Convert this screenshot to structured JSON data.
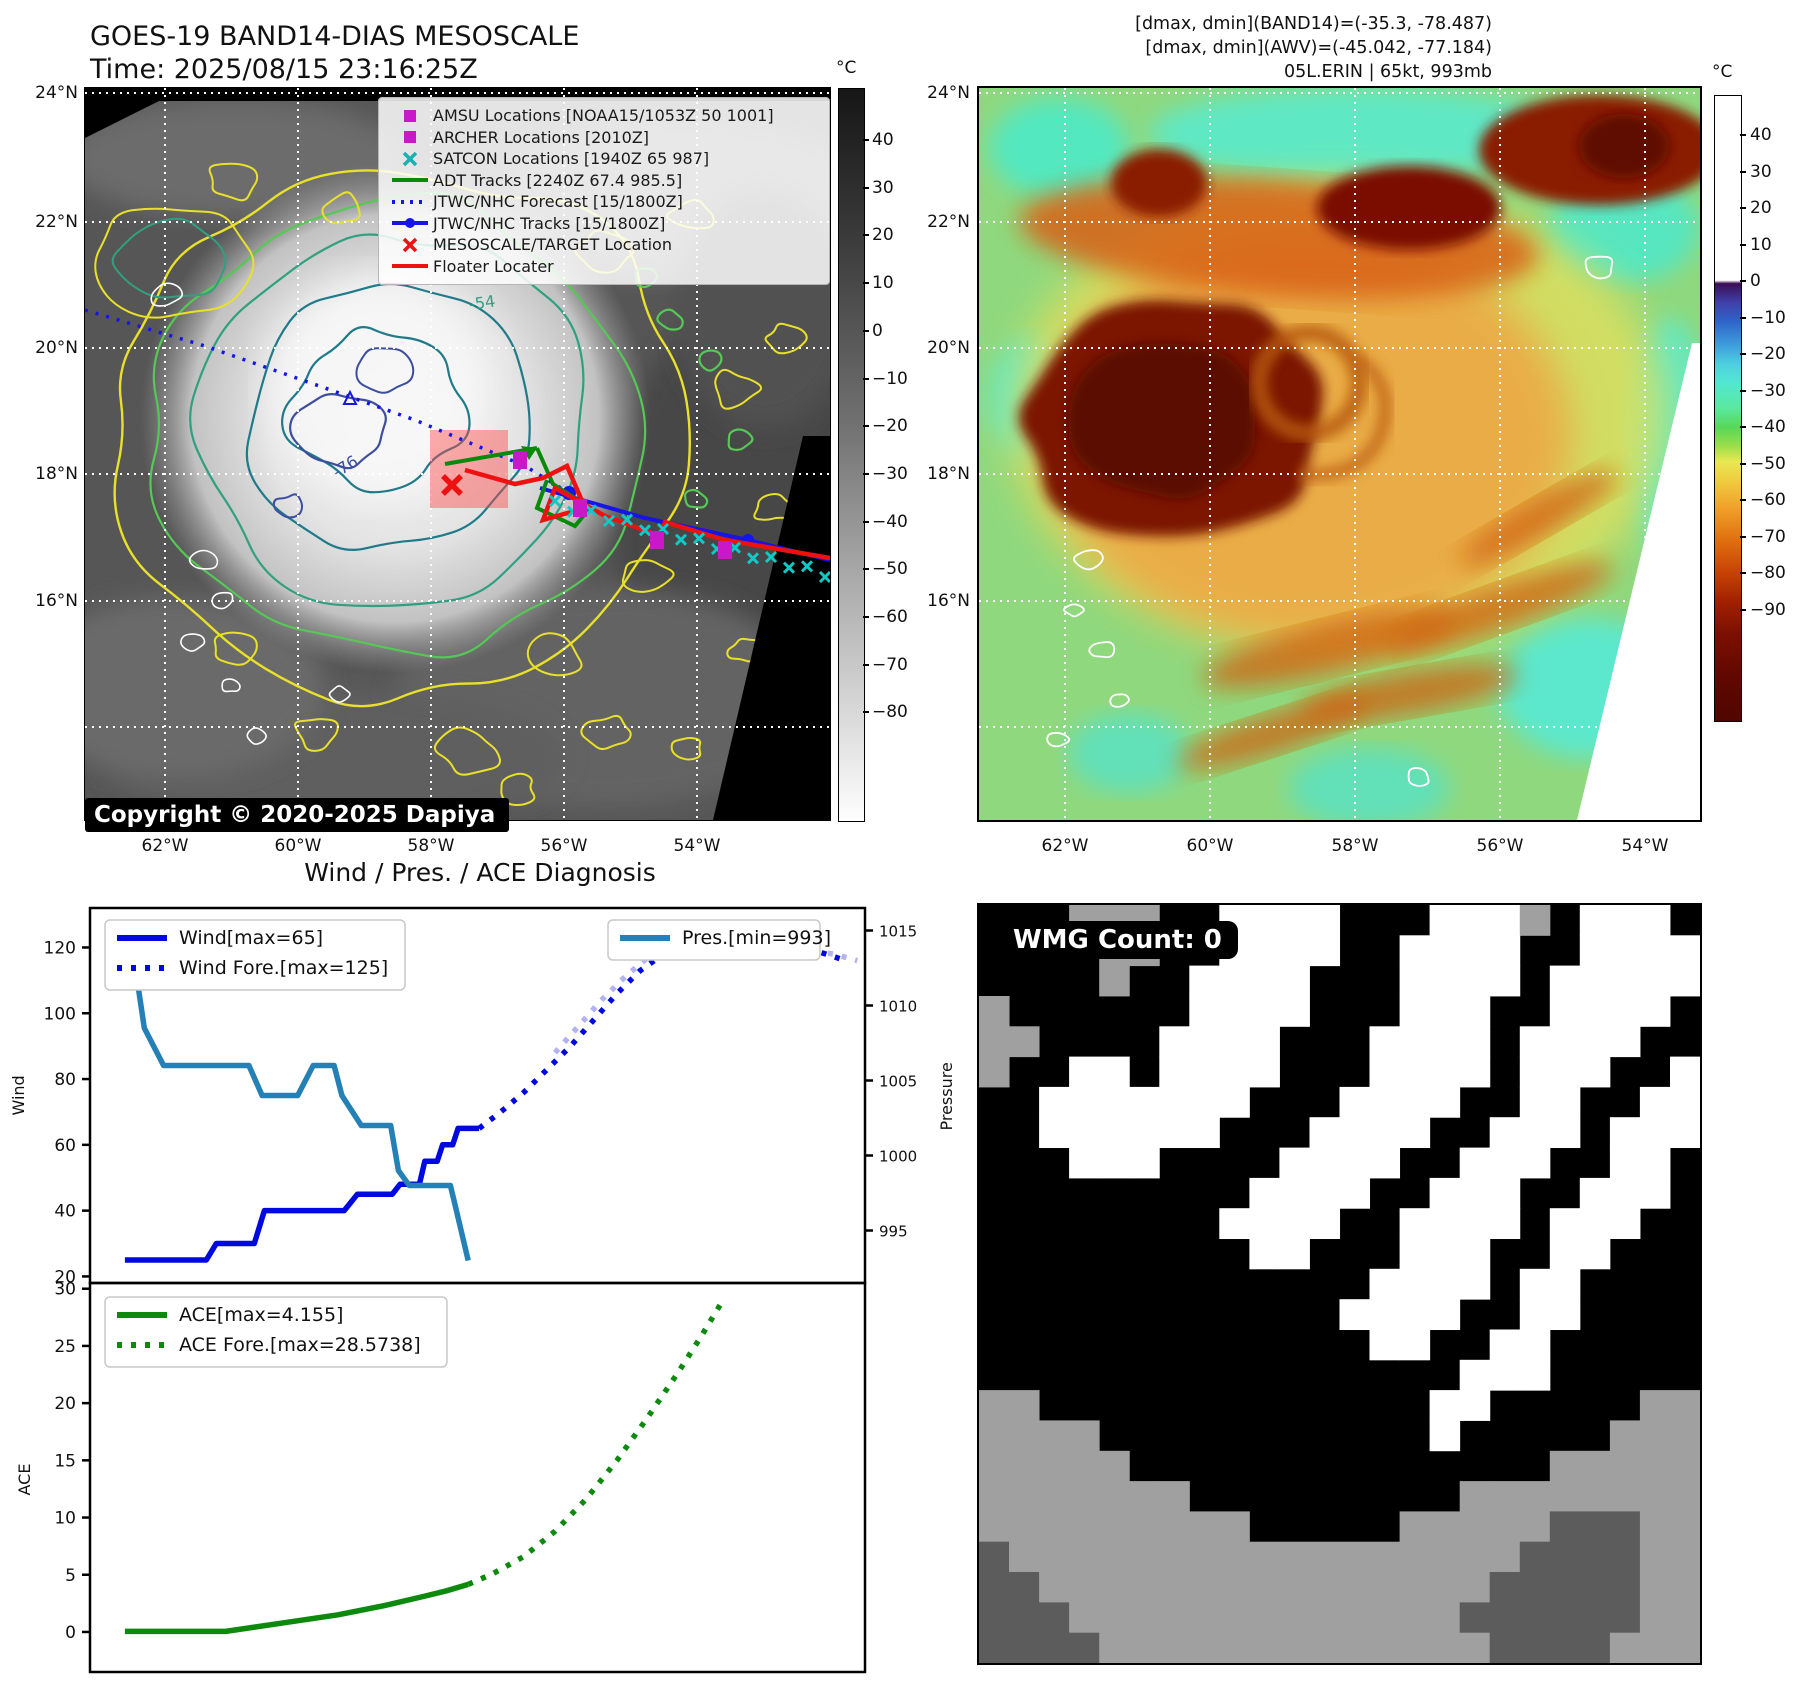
{
  "header": {
    "title1": "GOES-19 BAND14-DIAS MESOSCALE",
    "title2": "Time: 2025/08/15 23:16:25Z",
    "info1": "[dmax, dmin](BAND14)=(-35.3, -78.487)",
    "info2": "[dmax, dmin](AWV)=(-45.042, -77.184)",
    "info3": "05L.ERIN | 65kt, 993mb"
  },
  "sat_left": {
    "y_ticks": [
      "24°N",
      "22°N",
      "20°N",
      "18°N",
      "16°N"
    ],
    "x_ticks": [
      "62°W",
      "60°W",
      "58°W",
      "56°W",
      "54°W"
    ],
    "copyright": "Copyright © 2020-2025 Dapiya",
    "contour_labels": {
      "inner": "-76",
      "outer": "-54"
    },
    "legend": [
      {
        "marker": "square",
        "color": "#c818c8",
        "label": "AMSU Locations [NOAA15/1053Z 50 1001]"
      },
      {
        "marker": "square",
        "color": "#c818c8",
        "label": "ARCHER Locations [2010Z]"
      },
      {
        "marker": "x",
        "color": "#18b0b0",
        "label": "SATCON Locations [1940Z 65 987]"
      },
      {
        "marker": "line",
        "color": "#0a8a0a",
        "label": "ADT Tracks [2240Z 67.4 985.5]"
      },
      {
        "marker": "dotted",
        "color": "#1515e8",
        "label": "JTWC/NHC Forecast [15/1800Z]"
      },
      {
        "marker": "linedot",
        "color": "#1515e8",
        "label": "JTWC/NHC Tracks [15/1800Z]"
      },
      {
        "marker": "x",
        "color": "#ee1111",
        "label": "MESOSCALE/TARGET Location"
      },
      {
        "marker": "line",
        "color": "#ee1111",
        "label": "Floater Locater"
      }
    ],
    "colorbar": {
      "unit": "°C",
      "ticks": [
        "40",
        "30",
        "20",
        "10",
        "0",
        "−10",
        "−20",
        "−30",
        "−40",
        "−50",
        "−60",
        "−70",
        "−80"
      ]
    }
  },
  "sat_right": {
    "y_ticks": [
      "24°N",
      "22°N",
      "20°N",
      "18°N",
      "16°N"
    ],
    "x_ticks": [
      "62°W",
      "60°W",
      "58°W",
      "56°W",
      "54°W"
    ],
    "colorbar": {
      "unit": "°C",
      "ticks": [
        "40",
        "30",
        "20",
        "10",
        "0",
        "−10",
        "−20",
        "−30",
        "−40",
        "−50",
        "−60",
        "−70",
        "−80",
        "−90"
      ]
    }
  },
  "wmg": {
    "label": "WMG Count: 0",
    "palette": {
      "B": "#000000",
      "W": "#ffffff",
      "G": "#a0a0a0",
      "D": "#5c5c5c"
    },
    "grid": [
      "BBBGGGBBWWWWBBBWWWGBWWWB",
      "BBBBGGBBWWWWBBWWWWBBWWWW",
      "BBBBGBBWWWWBBBWWWWBWWWWW",
      "GBBBBBBWWWWBBBWWWBBWWWWB",
      "GGBBBBWWWWBBBWWWWBWWWWBB",
      "GBBWWBWWWWBBBWWWWBWWWBBW",
      "BBWWWWWWWBBBWWWWBBWWBBWW",
      "BBWWWWWWBBBWWWWBBWWWBWWW",
      "BBBWWWBBBBWWWWBBWWWBBWWB",
      "BBBBBBBBBWWWWBBWWWBBWWWB",
      "BBBBBBBBWWWWBBWWWWBWWWBB",
      "BBBBBBBBBWWBBBWWWBBWWBBB",
      "BBBBBBBBBBBBBWWWWBWWBBBB",
      "BBBBBBBBBBBBWWWWBBWWBBBB",
      "BBBBBBBBBBBBBWWBBWWBBBBB",
      "BBBBBBBBBBBBBBBBWWWBBBBB",
      "GGBBBBBBBBBBBBBWWBBBBBGG",
      "GGGGBBBBBBBBBBBWBBBBBGGG",
      "GGGGGBBBBBBBBBBBBBBGGGGG",
      "GGGGGGGBBBBBBBBBGGGGGGGG",
      "GGGGGGGGGBBBBBGGGGGDDDGG",
      "DGGGGGGGGGGGGGGGGGDDDDGG",
      "DDGGGGGGGGGGGGGGGDDDDDGG",
      "DDDGGGGGGGGGGGGGDDDDDDGG",
      "DDDDGGGGGGGGGGGGGDDDDGGG"
    ]
  },
  "chart_data": {
    "type": "line",
    "title": "Wind / Pres. / ACE Diagnosis",
    "panels": [
      {
        "name": "wind_pres",
        "ylabel_left": "Wind",
        "ylabel_right": "Pressure",
        "ylim_left": [
          18,
          132
        ],
        "yticks_left": [
          20,
          40,
          60,
          80,
          100,
          120
        ],
        "ylim_right": [
          991.5,
          1016.5
        ],
        "yticks_right": [
          995,
          1000,
          1005,
          1010,
          1015
        ],
        "series": [
          {
            "name": "Wind ext. forecast",
            "style": "dotted",
            "color": "#b3b3ef",
            "axis": "left",
            "points": [
              [
                0.6,
                88
              ],
              [
                0.63,
                96
              ],
              [
                0.66,
                104
              ],
              [
                0.69,
                111
              ],
              [
                0.72,
                117
              ],
              [
                0.75,
                121
              ],
              [
                0.78,
                124
              ],
              [
                0.81,
                125
              ],
              [
                0.84,
                125
              ],
              [
                0.87,
                123
              ],
              [
                0.9,
                121
              ],
              [
                0.93,
                119
              ],
              [
                0.96,
                118
              ],
              [
                0.99,
                116
              ]
            ]
          },
          {
            "name": "Wind[max=65]",
            "style": "solid",
            "color": "#0008e0",
            "axis": "left",
            "points": [
              [
                0.045,
                25
              ],
              [
                0.15,
                25
              ],
              [
                0.163,
                30
              ],
              [
                0.212,
                30
              ],
              [
                0.225,
                40
              ],
              [
                0.328,
                40
              ],
              [
                0.345,
                45
              ],
              [
                0.39,
                45
              ],
              [
                0.4,
                48
              ],
              [
                0.425,
                48
              ],
              [
                0.432,
                55
              ],
              [
                0.448,
                55
              ],
              [
                0.455,
                60
              ],
              [
                0.468,
                60
              ],
              [
                0.475,
                65
              ],
              [
                0.502,
                65
              ]
            ]
          },
          {
            "name": "Wind Fore.[max=125]",
            "style": "dotted",
            "color": "#0008e0",
            "axis": "left",
            "points": [
              [
                0.502,
                65
              ],
              [
                0.53,
                70
              ],
              [
                0.56,
                76
              ],
              [
                0.59,
                83
              ],
              [
                0.62,
                90
              ],
              [
                0.65,
                98
              ],
              [
                0.68,
                106
              ],
              [
                0.71,
                113
              ],
              [
                0.74,
                118
              ],
              [
                0.77,
                122
              ],
              [
                0.8,
                124
              ],
              [
                0.83,
                125
              ],
              [
                0.86,
                124
              ],
              [
                0.89,
                122
              ],
              [
                0.92,
                120
              ],
              [
                0.95,
                118
              ],
              [
                0.975,
                116
              ]
            ]
          },
          {
            "name": "Pres.[min=993]",
            "style": "solid",
            "color": "#2581b5",
            "axis": "right",
            "points": [
              [
                0.052,
                1015
              ],
              [
                0.06,
                1012
              ],
              [
                0.07,
                1008.5
              ],
              [
                0.095,
                1006
              ],
              [
                0.205,
                1006
              ],
              [
                0.222,
                1004
              ],
              [
                0.268,
                1004
              ],
              [
                0.288,
                1006
              ],
              [
                0.315,
                1006
              ],
              [
                0.325,
                1004
              ],
              [
                0.35,
                1002
              ],
              [
                0.388,
                1002
              ],
              [
                0.398,
                999
              ],
              [
                0.412,
                998
              ],
              [
                0.465,
                998
              ],
              [
                0.472,
                996.5
              ],
              [
                0.488,
                993
              ]
            ]
          }
        ],
        "legend_left": [
          "Wind[max=65]",
          "Wind Fore.[max=125]"
        ],
        "legend_right": [
          "Pres.[min=993]"
        ]
      },
      {
        "name": "ace",
        "ylabel_left": "ACE",
        "ylim_left": [
          -3.5,
          30.5
        ],
        "yticks_left": [
          0,
          5,
          10,
          15,
          20,
          25,
          30
        ],
        "series": [
          {
            "name": "ACE[max=4.155]",
            "style": "solid",
            "color": "#0d8a0d",
            "axis": "left",
            "points": [
              [
                0.045,
                0.05
              ],
              [
                0.175,
                0.05
              ],
              [
                0.25,
                0.8
              ],
              [
                0.32,
                1.5
              ],
              [
                0.38,
                2.3
              ],
              [
                0.43,
                3.1
              ],
              [
                0.46,
                3.6
              ],
              [
                0.488,
                4.155
              ]
            ]
          },
          {
            "name": "ACE Fore.[max=28.5738]",
            "style": "dotted",
            "color": "#0d8a0d",
            "axis": "left",
            "points": [
              [
                0.488,
                4.155
              ],
              [
                0.52,
                5.1
              ],
              [
                0.56,
                6.6
              ],
              [
                0.6,
                8.8
              ],
              [
                0.64,
                11.6
              ],
              [
                0.68,
                15.0
              ],
              [
                0.72,
                18.8
              ],
              [
                0.76,
                22.8
              ],
              [
                0.79,
                26.0
              ],
              [
                0.813,
                28.5738
              ]
            ]
          }
        ],
        "legend_left": [
          "ACE[max=4.155]",
          "ACE Fore.[max=28.5738]"
        ]
      }
    ]
  }
}
